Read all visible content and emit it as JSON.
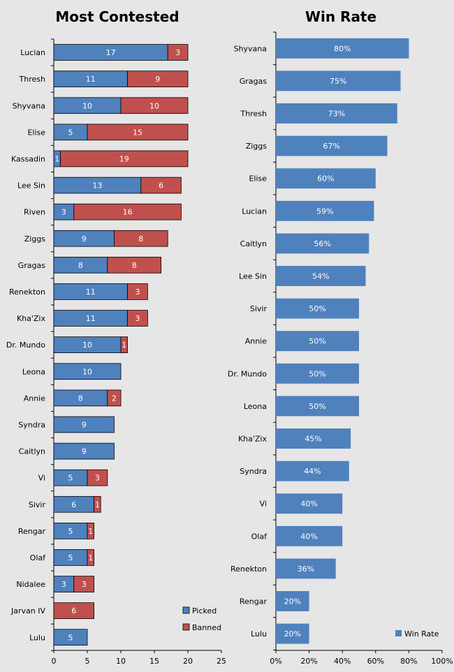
{
  "chart_data": [
    {
      "type": "bar",
      "orientation": "horizontal",
      "stacked": true,
      "title": "Most Contested",
      "categories": [
        "Lucian",
        "Thresh",
        "Shyvana",
        "Elise",
        "Kassadin",
        "Lee Sin",
        "Riven",
        "Ziggs",
        "Gragas",
        "Renekton",
        "Kha'Zix",
        "Dr. Mundo",
        "Leona",
        "Annie",
        "Syndra",
        "Caitlyn",
        "Vi",
        "Sivir",
        "Rengar",
        "Olaf",
        "Nidalee",
        "Jarvan IV",
        "Lulu"
      ],
      "series": [
        {
          "name": "Picked",
          "color": "#4f81bd",
          "values": [
            17,
            11,
            10,
            5,
            1,
            13,
            3,
            9,
            8,
            11,
            11,
            10,
            10,
            8,
            9,
            9,
            5,
            6,
            5,
            5,
            3,
            0,
            5
          ]
        },
        {
          "name": "Banned",
          "color": "#c0504d",
          "values": [
            3,
            9,
            10,
            15,
            19,
            6,
            16,
            8,
            8,
            3,
            3,
            1,
            0,
            2,
            0,
            0,
            3,
            1,
            1,
            1,
            3,
            6,
            0
          ]
        }
      ],
      "xlim": [
        0,
        25
      ],
      "xticks": [
        "0",
        "5",
        "10",
        "15",
        "20",
        "25"
      ],
      "legend": "bottom-right",
      "grid": false
    },
    {
      "type": "bar",
      "orientation": "horizontal",
      "title": "Win Rate",
      "categories": [
        "Shyvana",
        "Gragas",
        "Thresh",
        "Ziggs",
        "Elise",
        "Lucian",
        "Caitlyn",
        "Lee Sin",
        "Sivir",
        "Annie",
        "Dr. Mundo",
        "Leona",
        "Kha'Zix",
        "Syndra",
        "Vi",
        "Olaf",
        "Renekton",
        "Rengar",
        "Lulu"
      ],
      "series": [
        {
          "name": "Win Rate",
          "color": "#4f81bd",
          "values": [
            80,
            75,
            73,
            67,
            60,
            59,
            56,
            54,
            50,
            50,
            50,
            50,
            45,
            44,
            40,
            40,
            36,
            20,
            20
          ]
        }
      ],
      "labels": [
        "80%",
        "75%",
        "73%",
        "67%",
        "60%",
        "59%",
        "56%",
        "54%",
        "50%",
        "50%",
        "50%",
        "50%",
        "45%",
        "44%",
        "40%",
        "40%",
        "36%",
        "20%",
        "20%"
      ],
      "xlim": [
        0,
        100
      ],
      "xticks": [
        "0%",
        "20%",
        "40%",
        "60%",
        "80%",
        "100%"
      ],
      "legend": "bottom-right",
      "grid": false
    }
  ]
}
